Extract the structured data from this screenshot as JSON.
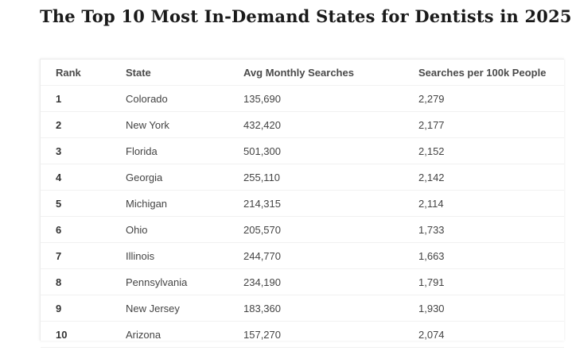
{
  "title": "The Top 10 Most In-Demand States for Dentists in 2025",
  "table": {
    "headers": [
      "Rank",
      "State",
      "Avg Monthly Searches",
      "Searches per 100k People"
    ],
    "rows": [
      [
        "1",
        "Colorado",
        "135,690",
        "2,279"
      ],
      [
        "2",
        "New York",
        "432,420",
        "2,177"
      ],
      [
        "3",
        "Florida",
        "501,300",
        "2,152"
      ],
      [
        "4",
        "Georgia",
        "255,110",
        "2,142"
      ],
      [
        "5",
        "Michigan",
        "214,315",
        "2,114"
      ],
      [
        "6",
        "Ohio",
        "205,570",
        "1,733"
      ],
      [
        "7",
        "Illinois",
        "244,770",
        "1,663"
      ],
      [
        "8",
        "Pennsylvania",
        "234,190",
        "1,791"
      ],
      [
        "9",
        "New Jersey",
        "183,360",
        "1,930"
      ],
      [
        "10",
        "Arizona",
        "157,270",
        "2,074"
      ]
    ]
  }
}
